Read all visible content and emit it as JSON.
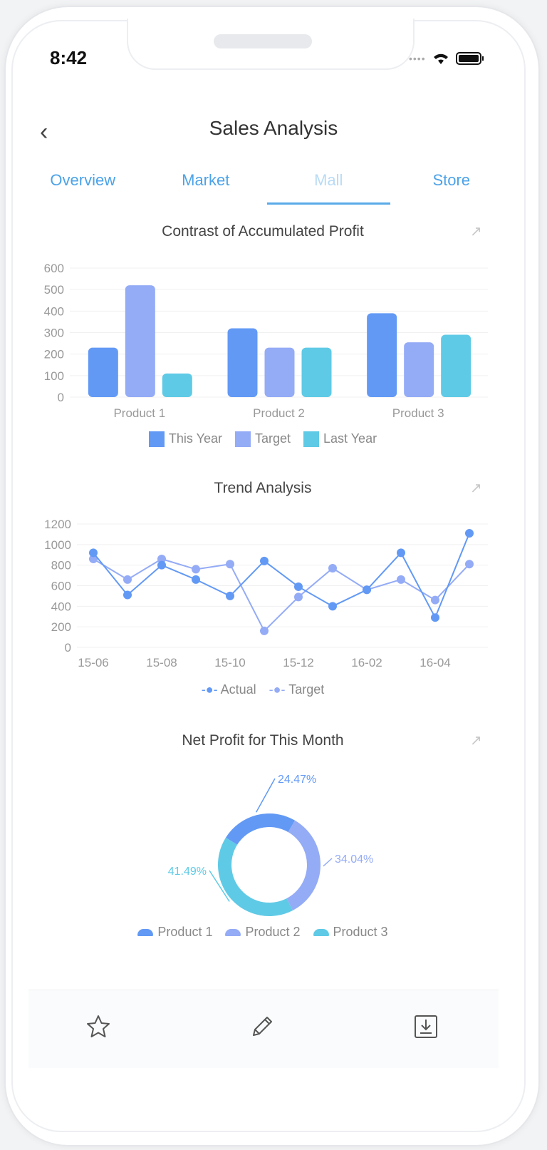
{
  "status_bar": {
    "time": "8:42"
  },
  "header": {
    "title": "Sales Analysis",
    "back_icon": "chevron-left-icon"
  },
  "tabs": [
    {
      "label": "Overview"
    },
    {
      "label": "Market"
    },
    {
      "label": "Mall",
      "active": true
    },
    {
      "label": "Store"
    }
  ],
  "colors": {
    "this_year": "#6299f5",
    "target": "#94abf6",
    "last_year": "#5fcae6",
    "tab_accent": "#4da3e8"
  },
  "chart_data": [
    {
      "type": "bar",
      "title": "Contrast of Accumulated Profit",
      "categories": [
        "Product 1",
        "Product 2",
        "Product 3"
      ],
      "series": [
        {
          "name": "This Year",
          "values": [
            230,
            320,
            390
          ]
        },
        {
          "name": "Target",
          "values": [
            520,
            230,
            255
          ]
        },
        {
          "name": "Last Year",
          "values": [
            110,
            230,
            290
          ]
        }
      ],
      "ylim": [
        0,
        600
      ],
      "yticks": [
        0,
        100,
        200,
        300,
        400,
        500,
        600
      ],
      "grid": true,
      "legend": "bottom"
    },
    {
      "type": "line",
      "title": "Trend Analysis",
      "x": [
        "15-06",
        "15-07",
        "15-08",
        "15-09",
        "15-10",
        "15-11",
        "15-12",
        "16-01",
        "16-02",
        "16-03",
        "16-04",
        "16-05"
      ],
      "xticks": [
        "15-06",
        "15-08",
        "15-10",
        "15-12",
        "16-02",
        "16-04"
      ],
      "series": [
        {
          "name": "Actual",
          "values": [
            920,
            510,
            800,
            660,
            500,
            840,
            590,
            400,
            560,
            920,
            290,
            1110
          ]
        },
        {
          "name": "Target",
          "values": [
            860,
            660,
            860,
            760,
            810,
            160,
            490,
            770,
            560,
            660,
            460,
            810
          ]
        }
      ],
      "ylim": [
        0,
        1200
      ],
      "yticks": [
        0,
        200,
        400,
        600,
        800,
        1000,
        1200
      ],
      "grid": true,
      "legend": "bottom"
    },
    {
      "type": "pie",
      "title": "Net Profit for This Month",
      "donut": true,
      "slices": [
        {
          "name": "Product 1",
          "value": 24.47,
          "label": "24.47%"
        },
        {
          "name": "Product 2",
          "value": 34.04,
          "label": "34.04%"
        },
        {
          "name": "Product 3",
          "value": 41.49,
          "label": "41.49%"
        }
      ],
      "legend": "bottom"
    }
  ],
  "bottom_bar": {
    "icons": [
      "star-icon",
      "pencil-icon",
      "download-icon"
    ]
  }
}
